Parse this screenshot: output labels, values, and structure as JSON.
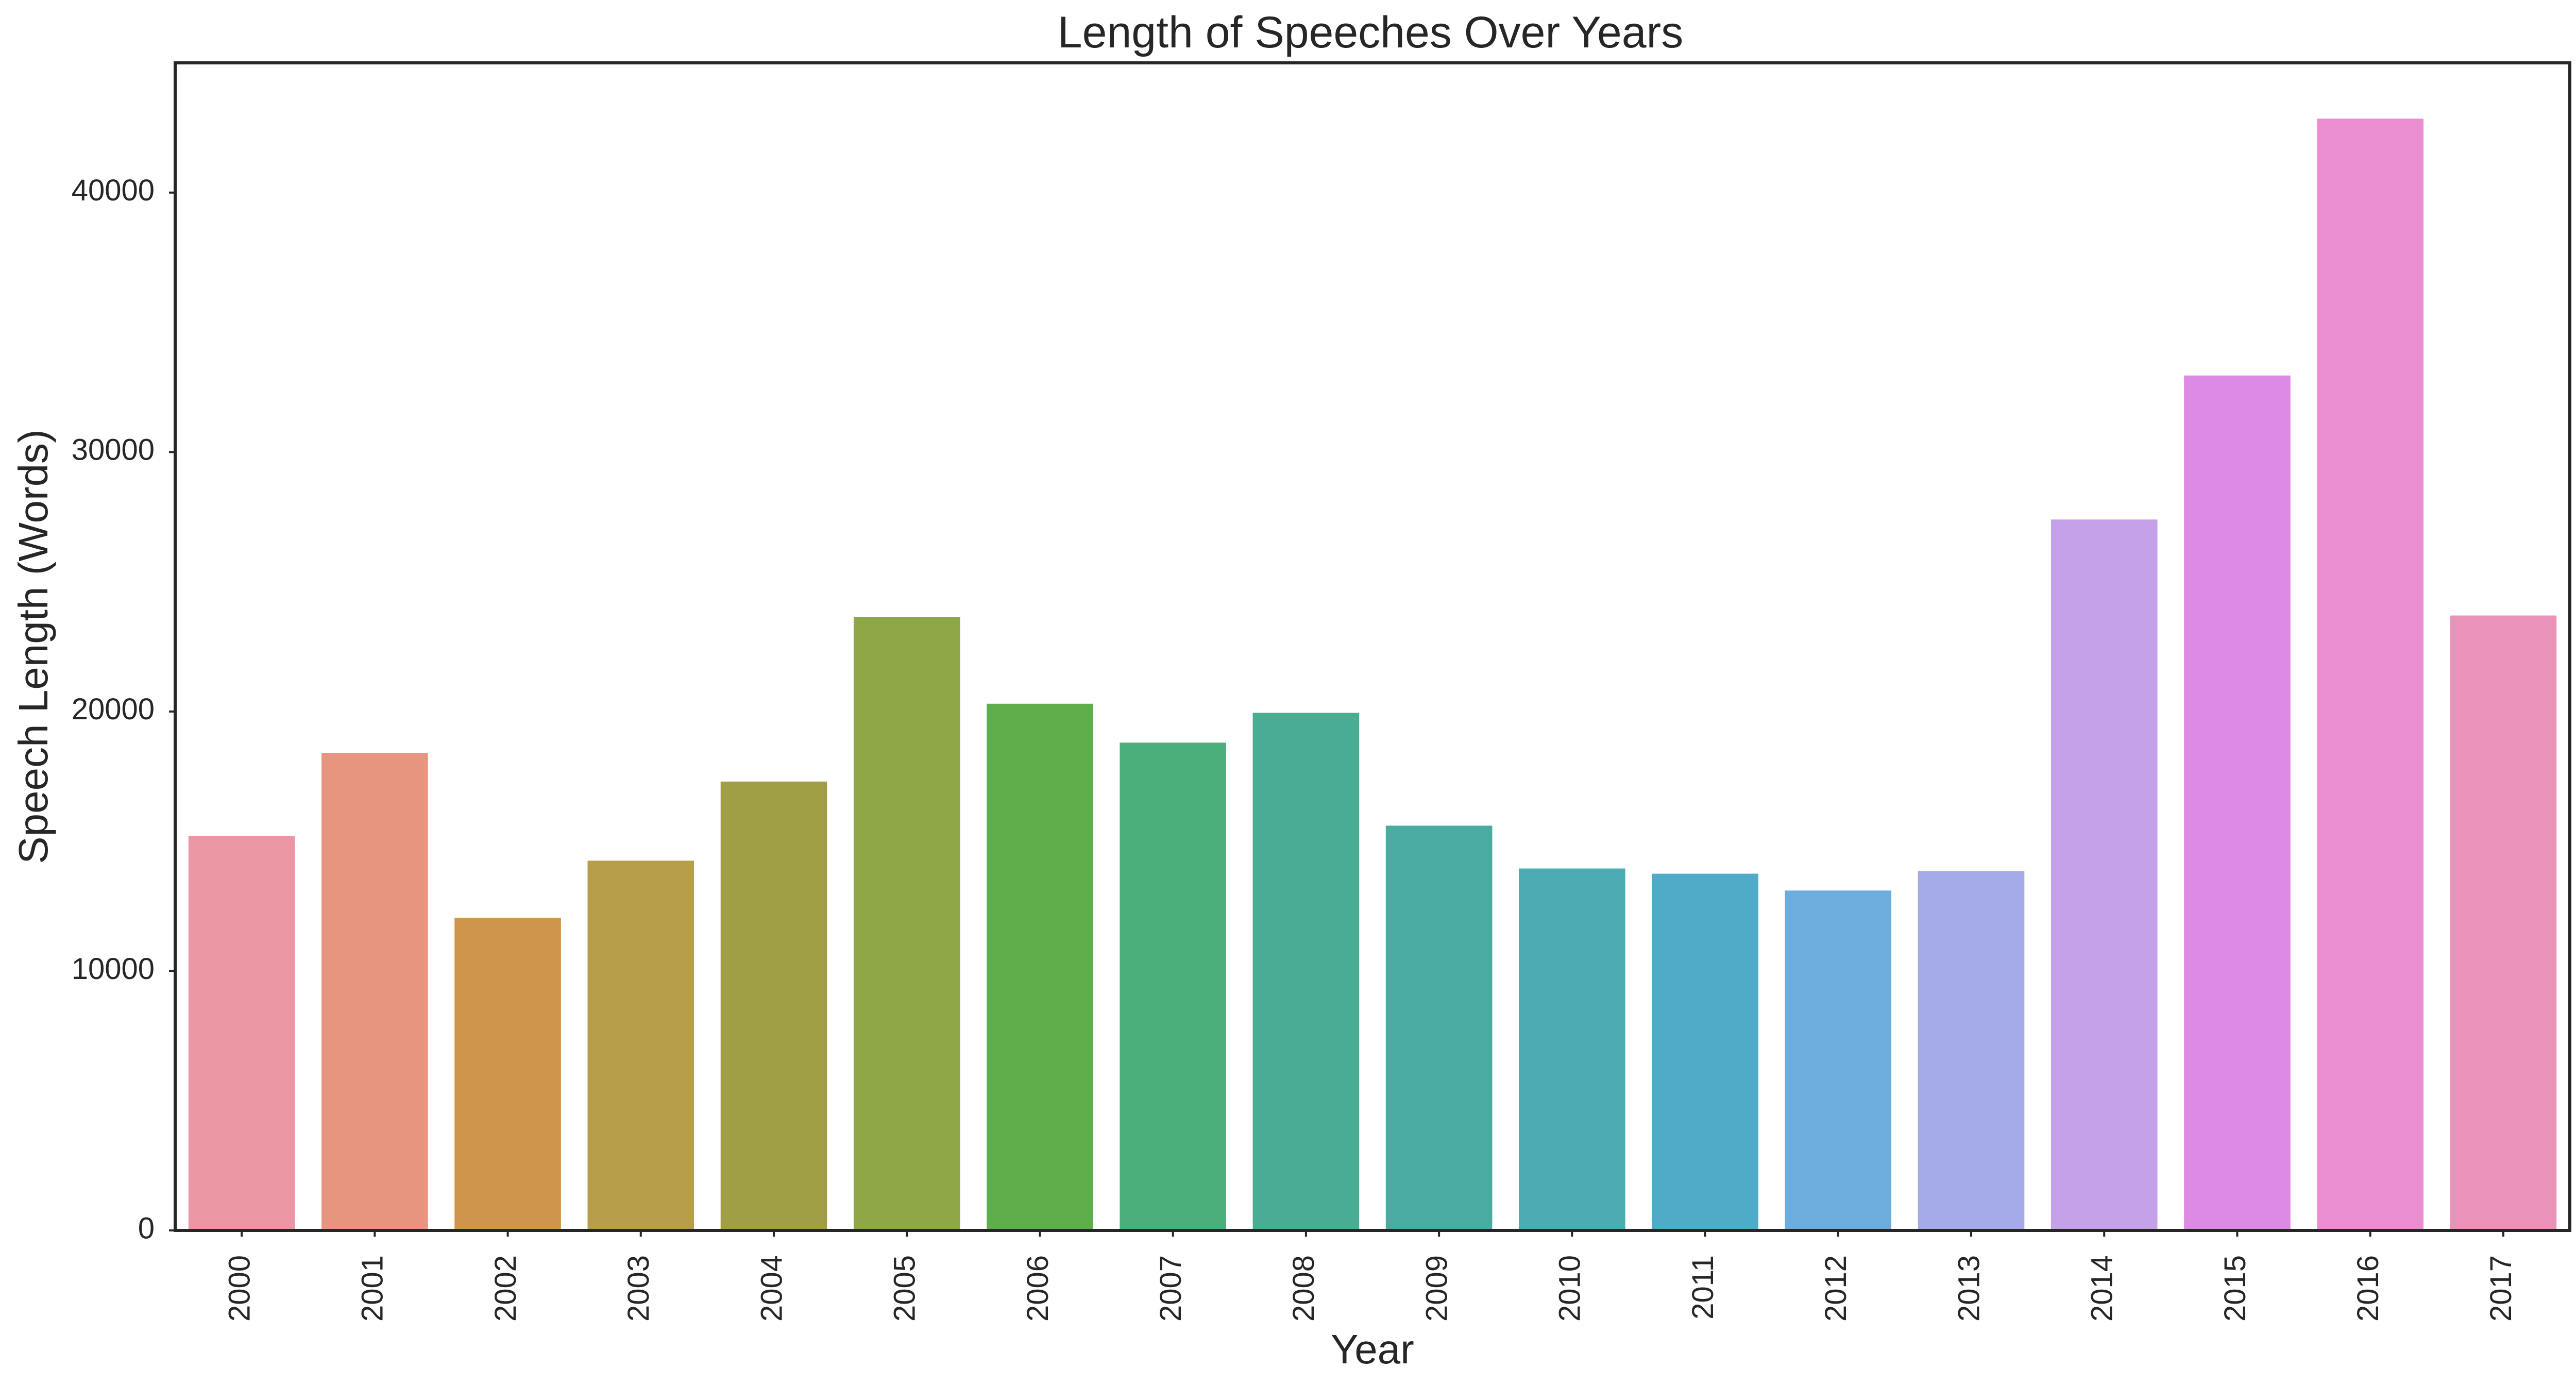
{
  "chart_data": {
    "type": "bar",
    "title": "Length of Speeches Over Years",
    "xlabel": "Year",
    "ylabel": "Speech Length (Words)",
    "ylim": [
      0,
      45000
    ],
    "yticks": [
      0,
      10000,
      20000,
      30000,
      40000
    ],
    "grid": false,
    "legend": "none",
    "categories": [
      "2000",
      "2001",
      "2002",
      "2003",
      "2004",
      "2005",
      "2006",
      "2007",
      "2008",
      "2009",
      "2010",
      "2011",
      "2012",
      "2013",
      "2014",
      "2015",
      "2016",
      "2017"
    ],
    "values": [
      15200,
      18400,
      12050,
      14250,
      17300,
      23650,
      20300,
      18800,
      19950,
      15600,
      13950,
      13750,
      13100,
      13850,
      27400,
      32950,
      42850,
      23700
    ],
    "colors": [
      "#ea96a3",
      "#e7957f",
      "#d0954d",
      "#b69e4a",
      "#a09f46",
      "#8ea747",
      "#5fae4c",
      "#4aaf7a",
      "#4aad93",
      "#4aaba2",
      "#4cabb3",
      "#50abc8",
      "#6cadde",
      "#a5abe9",
      "#c5a1ea",
      "#dd8ae5",
      "#e98ed1",
      "#e993b9"
    ]
  }
}
